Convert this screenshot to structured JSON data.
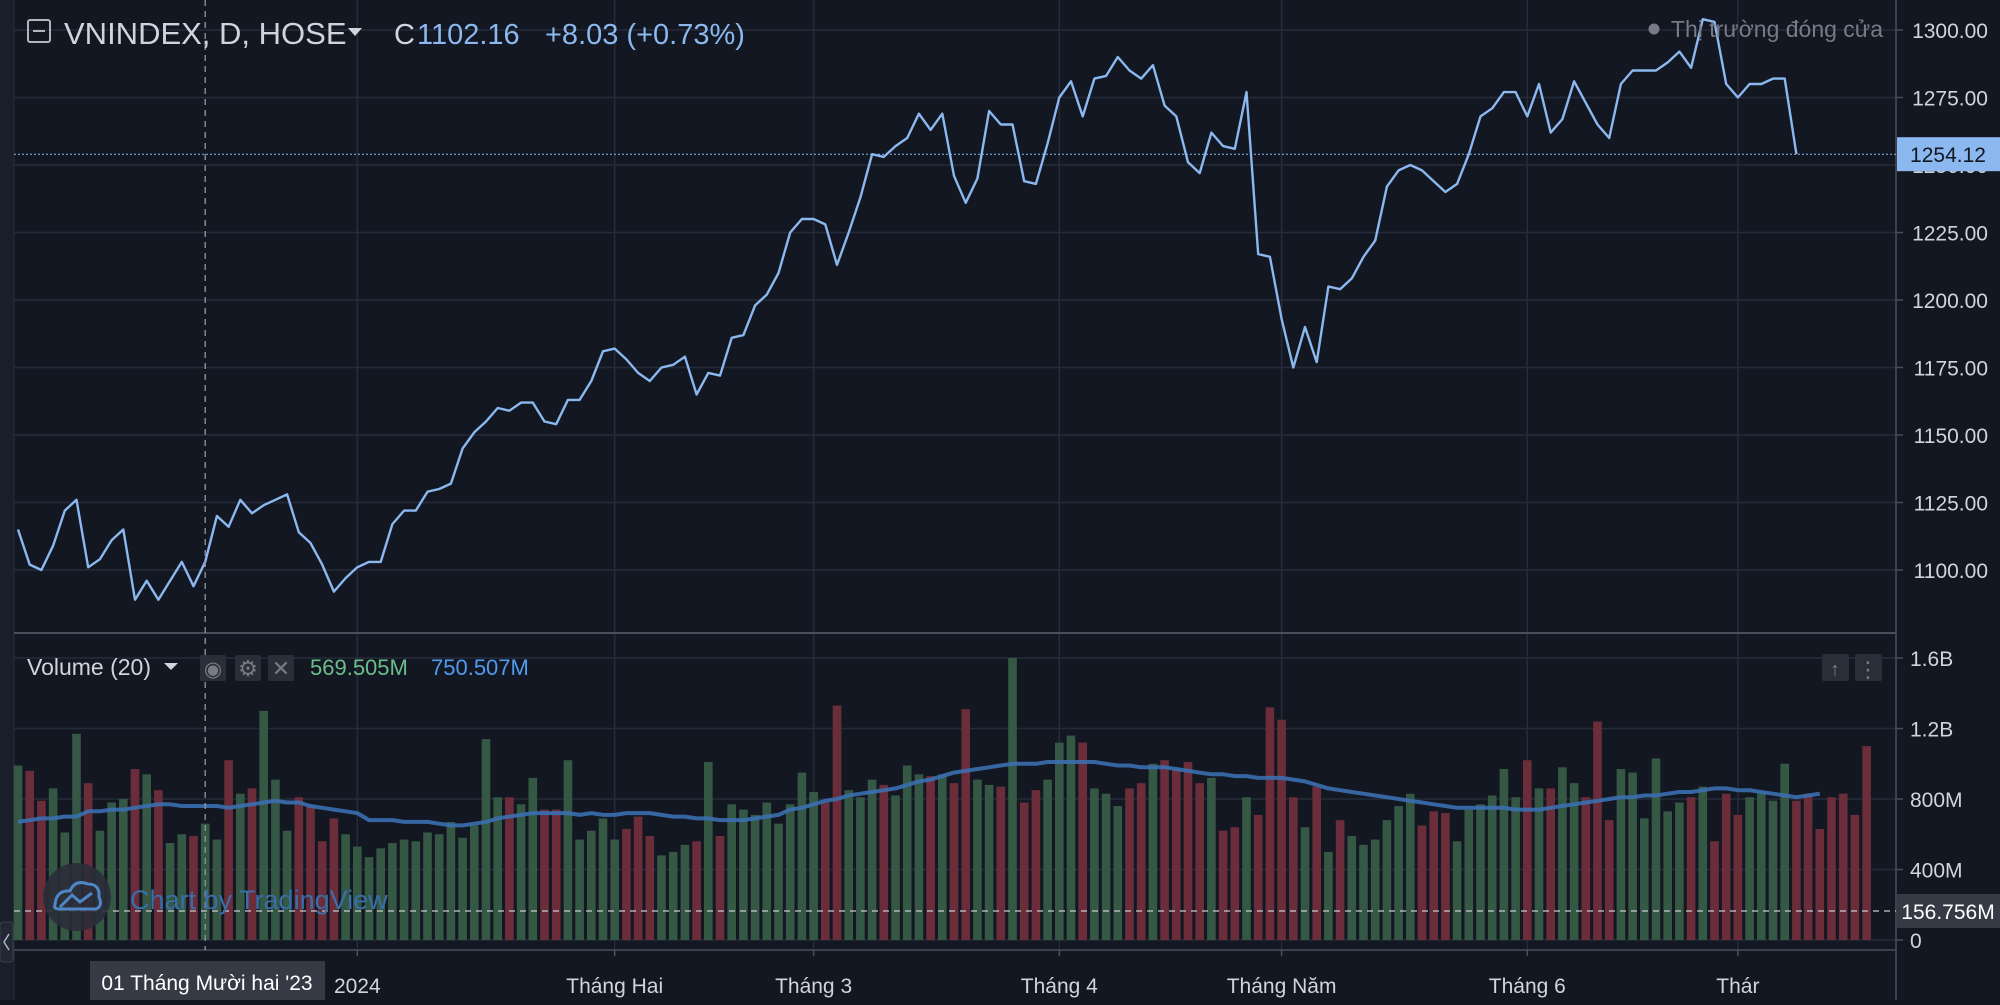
{
  "colors": {
    "background": "#131722",
    "grid": "#262b3b",
    "price_line": "#8ab8ef",
    "volume_up": "#355845",
    "volume_down": "#6b2d3a",
    "volume_ma": "#3b6fb0",
    "text": "#b2b5be",
    "accent_green": "#6bbd8a",
    "accent_blue": "#4f9bef",
    "price_label_bg": "#8ab8ef"
  },
  "header": {
    "symbol": "VNINDEX, D, HOSE",
    "close_label": "C",
    "close_value": "1102.16",
    "change": "+8.03 (+0.73%)",
    "market_status": "Thị trường đóng cửa"
  },
  "volume_legend": {
    "title": "Volume (20)",
    "value": "569.505M",
    "ma_value": "750.507M"
  },
  "watermark": "Chart by TradingView",
  "crosshair": {
    "date_label": "01 Tháng Mười hai '23"
  },
  "current_price_label": "1254.12",
  "current_volume_label": "156.756M",
  "chart_data": {
    "type": "line",
    "title": "VNINDEX, D, HOSE",
    "price_axis": {
      "range": [
        1080,
        1307
      ],
      "ticks": [
        1100,
        1125,
        1150,
        1175,
        1200,
        1225,
        1250,
        1275,
        1300
      ],
      "tick_labels": [
        "1100.00",
        "1125.00",
        "1150.00",
        "1175.00",
        "1200.00",
        "1225.00",
        "1250.00",
        "1275.00",
        "1300.00"
      ]
    },
    "volume_axis": {
      "range": [
        0,
        1.6
      ],
      "unit": "billion shares",
      "ticks": [
        0,
        0.4,
        0.8,
        1.2,
        1.6
      ],
      "tick_labels": [
        "0",
        "400M",
        "800M",
        "1.2B",
        "1.6B"
      ]
    },
    "x_axis": {
      "labels": [
        {
          "text": "2024",
          "index": 29
        },
        {
          "text": "Tháng Hai",
          "index": 51
        },
        {
          "text": "Tháng 3",
          "index": 68
        },
        {
          "text": "Tháng 4",
          "index": 89
        },
        {
          "text": "Tháng Năm",
          "index": 108
        },
        {
          "text": "Tháng 6",
          "index": 129
        },
        {
          "text": "Thár",
          "index": 147
        }
      ]
    },
    "series": [
      {
        "type": "line",
        "values": [
          1115,
          1102,
          1100,
          1109,
          1122,
          1126,
          1101,
          1104,
          1111,
          1115,
          1089,
          1096,
          1089,
          1096,
          1103,
          1094,
          1103,
          1120,
          1116,
          1126,
          1121,
          1124,
          1126,
          1128,
          1114,
          1110,
          1102,
          1092,
          1097,
          1101,
          1103,
          1103,
          1117,
          1122,
          1122,
          1129,
          1130,
          1132,
          1145,
          1151,
          1155,
          1160,
          1159,
          1162,
          1162,
          1155,
          1154,
          1163,
          1163,
          1170,
          1181,
          1182,
          1178,
          1173,
          1170,
          1175,
          1176,
          1179,
          1165,
          1173,
          1172,
          1186,
          1187,
          1198,
          1202,
          1210,
          1225,
          1230,
          1230,
          1228,
          1213,
          1225,
          1238,
          1254,
          1253,
          1257,
          1260,
          1269,
          1263,
          1269,
          1246,
          1236,
          1245,
          1270,
          1265,
          1265,
          1244,
          1243,
          1258,
          1275,
          1281,
          1268,
          1282,
          1283,
          1290,
          1285,
          1282,
          1287,
          1272,
          1268,
          1251,
          1247,
          1262,
          1257,
          1256,
          1277,
          1217,
          1216,
          1193,
          1175,
          1190,
          1177,
          1205,
          1204,
          1208,
          1216,
          1222,
          1242,
          1248,
          1250,
          1248,
          1244,
          1240,
          1243,
          1254,
          1268,
          1271,
          1277,
          1277,
          1268,
          1280,
          1262,
          1267,
          1281,
          1273,
          1265,
          1260,
          1280,
          1285,
          1285,
          1285,
          1288,
          1292,
          1286,
          1304,
          1303,
          1280,
          1275,
          1280,
          1280,
          1282,
          1282,
          1254
        ]
      },
      {
        "type": "bar",
        "name": "Volume",
        "values": [
          0.99,
          0.96,
          0.79,
          0.86,
          0.61,
          1.17,
          0.89,
          0.62,
          0.78,
          0.8,
          0.97,
          0.94,
          0.85,
          0.55,
          0.6,
          0.59,
          0.66,
          0.57,
          1.02,
          0.83,
          0.86,
          1.3,
          0.91,
          0.62,
          0.81,
          0.76,
          0.56,
          0.69,
          0.6,
          0.53,
          0.47,
          0.52,
          0.55,
          0.57,
          0.56,
          0.61,
          0.6,
          0.67,
          0.58,
          0.65,
          1.14,
          0.81,
          0.81,
          0.77,
          0.92,
          0.74,
          0.74,
          1.02,
          0.57,
          0.62,
          0.69,
          0.57,
          0.63,
          0.7,
          0.59,
          0.48,
          0.5,
          0.54,
          0.56,
          1.01,
          0.59,
          0.77,
          0.74,
          0.71,
          0.78,
          0.66,
          0.77,
          0.95,
          0.84,
          0.78,
          1.33,
          0.85,
          0.81,
          0.91,
          0.88,
          0.82,
          0.99,
          0.94,
          0.93,
          0.94,
          0.89,
          1.31,
          0.91,
          0.88,
          0.87,
          1.6,
          0.78,
          0.85,
          0.91,
          1.12,
          1.16,
          1.12,
          0.86,
          0.83,
          0.76,
          0.86,
          0.89,
          1.0,
          1.02,
          0.97,
          1.01,
          0.89,
          0.92,
          0.62,
          0.64,
          0.81,
          0.71,
          1.32,
          1.25,
          0.81,
          0.64,
          0.87,
          0.5,
          0.68,
          0.59,
          0.54,
          0.57,
          0.68,
          0.76,
          0.83,
          0.65,
          0.73,
          0.72,
          0.56,
          0.74,
          0.77,
          0.82,
          0.97,
          0.81,
          1.02,
          0.86,
          0.86,
          0.98,
          0.89,
          0.81,
          1.24,
          0.68,
          0.97,
          0.95,
          0.69,
          1.03,
          0.73,
          0.78,
          0.81,
          0.87,
          0.56,
          0.83,
          0.71,
          0.81,
          0.84,
          0.79,
          1.0,
          0.79,
          0.83,
          0.63,
          0.81,
          0.83,
          0.71,
          1.1
        ]
      },
      {
        "type": "line",
        "name": "Volume MA",
        "values": [
          0.67,
          0.68,
          0.69,
          0.69,
          0.7,
          0.7,
          0.73,
          0.73,
          0.74,
          0.74,
          0.75,
          0.76,
          0.77,
          0.77,
          0.76,
          0.76,
          0.76,
          0.76,
          0.75,
          0.76,
          0.77,
          0.78,
          0.79,
          0.78,
          0.78,
          0.76,
          0.75,
          0.74,
          0.73,
          0.72,
          0.68,
          0.68,
          0.68,
          0.67,
          0.67,
          0.67,
          0.66,
          0.65,
          0.65,
          0.66,
          0.67,
          0.69,
          0.7,
          0.71,
          0.72,
          0.72,
          0.72,
          0.72,
          0.71,
          0.72,
          0.71,
          0.71,
          0.72,
          0.72,
          0.72,
          0.71,
          0.7,
          0.7,
          0.69,
          0.69,
          0.68,
          0.68,
          0.68,
          0.69,
          0.7,
          0.71,
          0.74,
          0.75,
          0.77,
          0.79,
          0.8,
          0.82,
          0.83,
          0.84,
          0.85,
          0.86,
          0.88,
          0.9,
          0.91,
          0.93,
          0.95,
          0.96,
          0.97,
          0.98,
          0.99,
          1.0,
          1.0,
          1.0,
          1.01,
          1.01,
          1.01,
          1.01,
          1.01,
          1.0,
          0.99,
          0.99,
          0.98,
          0.98,
          0.98,
          0.97,
          0.96,
          0.95,
          0.94,
          0.94,
          0.93,
          0.93,
          0.92,
          0.92,
          0.92,
          0.91,
          0.9,
          0.88,
          0.86,
          0.85,
          0.84,
          0.83,
          0.82,
          0.81,
          0.8,
          0.79,
          0.78,
          0.77,
          0.76,
          0.75,
          0.75,
          0.75,
          0.75,
          0.75,
          0.74,
          0.74,
          0.74,
          0.75,
          0.76,
          0.77,
          0.78,
          0.79,
          0.8,
          0.81,
          0.81,
          0.82,
          0.82,
          0.83,
          0.84,
          0.84,
          0.85,
          0.86,
          0.86,
          0.85,
          0.85,
          0.84,
          0.83,
          0.82,
          0.81,
          0.82,
          0.83
        ]
      }
    ],
    "grid": true
  }
}
